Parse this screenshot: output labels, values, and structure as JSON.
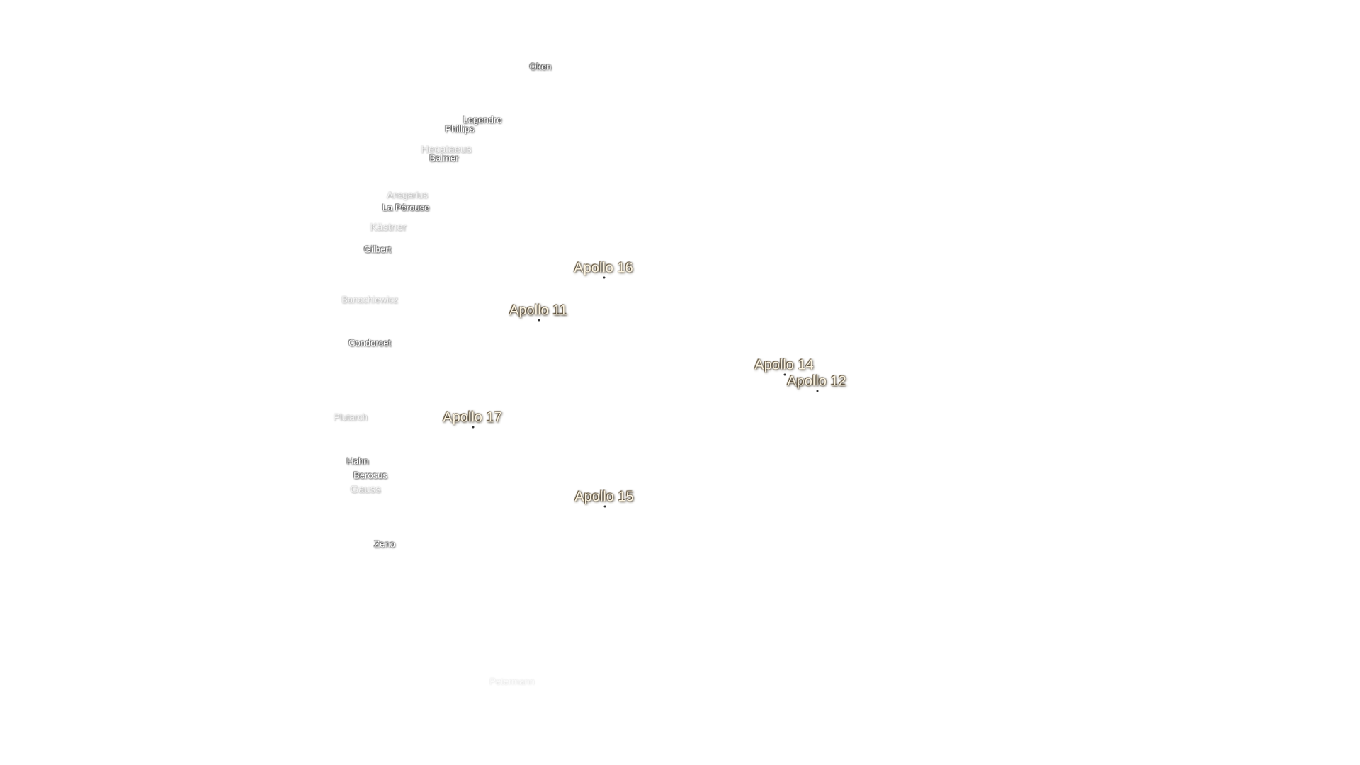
{
  "craters": [
    "Oken",
    "Legendre",
    "Phillips",
    "Hecataeus",
    "Balmer",
    "Ansgarius",
    "La Pérouse",
    "Kästner",
    "Gilbert",
    "Banachiewicz",
    "Condorcet",
    "Plutarch",
    "Hahn",
    "Berosus",
    "Gauss",
    "Zeno",
    "Petermann"
  ],
  "landing_sites": [
    "Apollo 16",
    "Apollo 11",
    "Apollo 14",
    "Apollo 12",
    "Apollo 17",
    "Apollo 15"
  ]
}
